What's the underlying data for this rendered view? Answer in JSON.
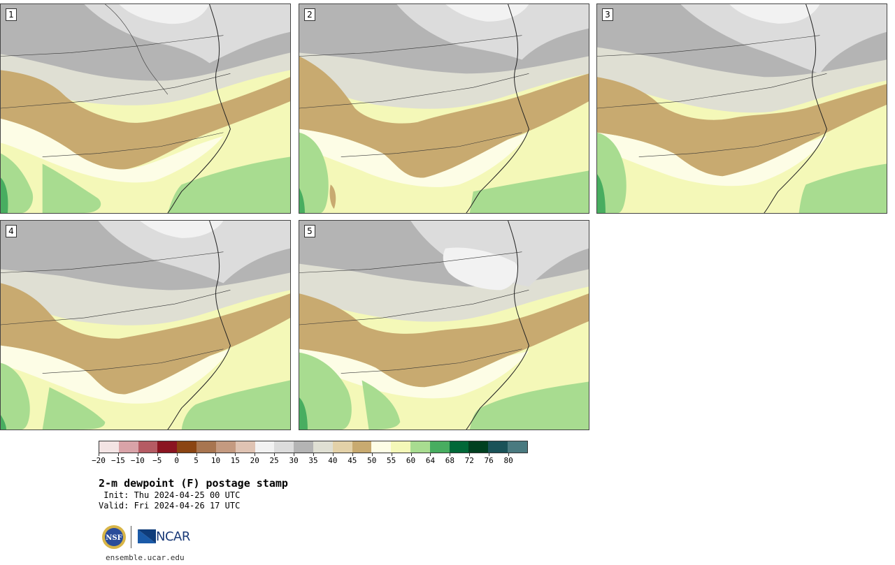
{
  "panels": [
    {
      "id": "1",
      "label": "1"
    },
    {
      "id": "2",
      "label": "2"
    },
    {
      "id": "3",
      "label": "3"
    },
    {
      "id": "4",
      "label": "4"
    },
    {
      "id": "5",
      "label": "5"
    }
  ],
  "colorbar": {
    "colors": [
      "#f3e4e4",
      "#d9a3a8",
      "#b55b63",
      "#8b1521",
      "#8b4513",
      "#a87550",
      "#c49a80",
      "#dfc3b3",
      "#f2f2f2",
      "#dcdcdc",
      "#b4b4b4",
      "#dfdfd3",
      "#e3d1a8",
      "#c8aa70",
      "#fdfde6",
      "#f4f8b8",
      "#a8dc90",
      "#48ad60",
      "#006838",
      "#004020",
      "#1a5258",
      "#4a7a80"
    ],
    "tick_labels": [
      "−20",
      "−15",
      "−10",
      "−5",
      "0",
      "5",
      "10",
      "15",
      "20",
      "25",
      "30",
      "35",
      "40",
      "45",
      "50",
      "55",
      "60",
      "64",
      "68",
      "72",
      "76",
      "80"
    ]
  },
  "title": "2-m dewpoint (F) postage stamp",
  "init": " Init: Thu 2024-04-25 00 UTC",
  "valid": "Valid: Fri 2024-04-26 17 UTC",
  "logos": {
    "nsf": "NSF",
    "ncar": "NCAR"
  },
  "site": "ensemble.ucar.edu"
}
